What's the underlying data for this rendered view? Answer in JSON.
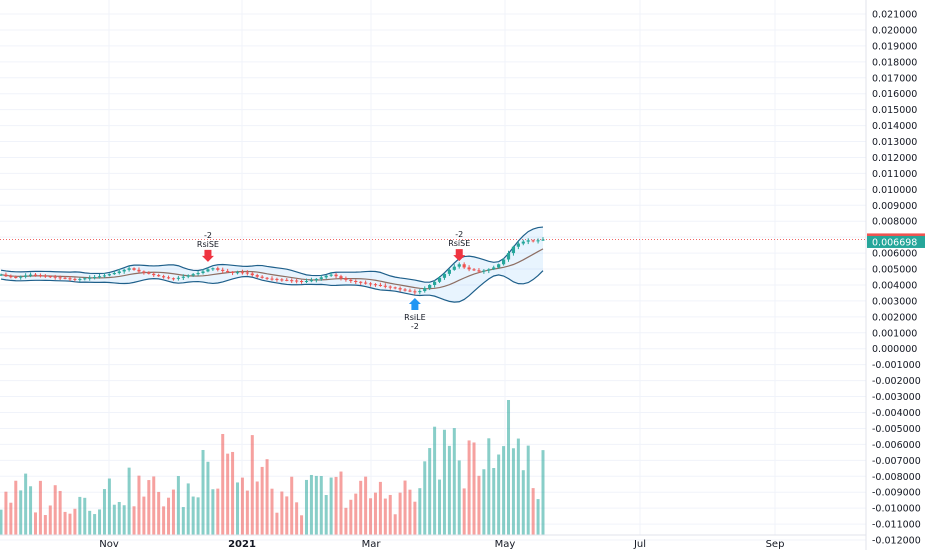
{
  "chart_data": {
    "type": "candlestick",
    "y_axis": {
      "ticks": [
        "0.021000",
        "0.020000",
        "0.019000",
        "0.018000",
        "0.017000",
        "0.016000",
        "0.015000",
        "0.014000",
        "0.013000",
        "0.012000",
        "0.011000",
        "0.010000",
        "0.009000",
        "0.008000",
        "0.007000",
        "0.006000",
        "0.005000",
        "0.004000",
        "0.003000",
        "0.002000",
        "0.001000",
        "0.000000",
        "-0.001000",
        "-0.002000",
        "-0.003000",
        "-0.004000",
        "-0.005000",
        "-0.006000",
        "-0.007000",
        "-0.008000",
        "-0.009000",
        "-0.010000",
        "-0.011000",
        "-0.012000"
      ],
      "ylim": [
        -0.012,
        0.021
      ]
    },
    "x_axis": {
      "ticks": [
        {
          "label": "Nov",
          "bold": false
        },
        {
          "label": "2021",
          "bold": true
        },
        {
          "label": "Mar",
          "bold": false
        },
        {
          "label": "May",
          "bold": false
        },
        {
          "label": "Jul",
          "bold": false
        },
        {
          "label": "Sep",
          "bold": false
        }
      ]
    },
    "grid": true,
    "price_labels": [
      {
        "value": "0.006858",
        "color": "#ef5350"
      },
      {
        "value": "0.006698",
        "color": "#26a69a"
      }
    ],
    "last_price_line": 0.006858,
    "signals": [
      {
        "type": "sell",
        "text": "RsiSE",
        "qty": "-2",
        "bar": 42,
        "price": 0.00545
      },
      {
        "type": "buy",
        "text": "RsiLE",
        "qty": "-2",
        "bar": 84,
        "price": 0.00318
      },
      {
        "type": "sell",
        "text": "RsiSE",
        "qty": "-2",
        "bar": 93,
        "price": 0.0055
      }
    ],
    "price_series": [
      0.00465,
      0.00455,
      0.0045,
      0.00448,
      0.00452,
      0.0046,
      0.00465,
      0.00462,
      0.00458,
      0.00455,
      0.00452,
      0.00448,
      0.00445,
      0.00442,
      0.00438,
      0.00435,
      0.00438,
      0.00442,
      0.00445,
      0.0045,
      0.00455,
      0.0046,
      0.00468,
      0.00475,
      0.00485,
      0.00495,
      0.00505,
      0.00495,
      0.00485,
      0.00478,
      0.0047,
      0.00462,
      0.00455,
      0.00448,
      0.00442,
      0.0044,
      0.00445,
      0.00452,
      0.0046,
      0.00468,
      0.00475,
      0.00485,
      0.00498,
      0.00505,
      0.00495,
      0.00488,
      0.00482,
      0.00478,
      0.0048,
      0.00478,
      0.00472,
      0.00462,
      0.00452,
      0.00445,
      0.0044,
      0.00438,
      0.00435,
      0.00432,
      0.0043,
      0.00428,
      0.00425,
      0.00422,
      0.00425,
      0.0043,
      0.00438,
      0.00448,
      0.00458,
      0.00465,
      0.00455,
      0.00442,
      0.00432,
      0.00425,
      0.0042,
      0.00415,
      0.0041,
      0.00405,
      0.004,
      0.00395,
      0.0039,
      0.00385,
      0.0038,
      0.00372,
      0.00365,
      0.0036,
      0.00355,
      0.00362,
      0.0038,
      0.004,
      0.0042,
      0.00445,
      0.0047,
      0.00495,
      0.00515,
      0.0053,
      0.0051,
      0.00498,
      0.00492,
      0.00485,
      0.0049,
      0.00498,
      0.0051,
      0.0053,
      0.0056,
      0.006,
      0.0064,
      0.0066,
      0.00672,
      0.0068,
      0.00675,
      0.0068,
      0.00685
    ]
  }
}
